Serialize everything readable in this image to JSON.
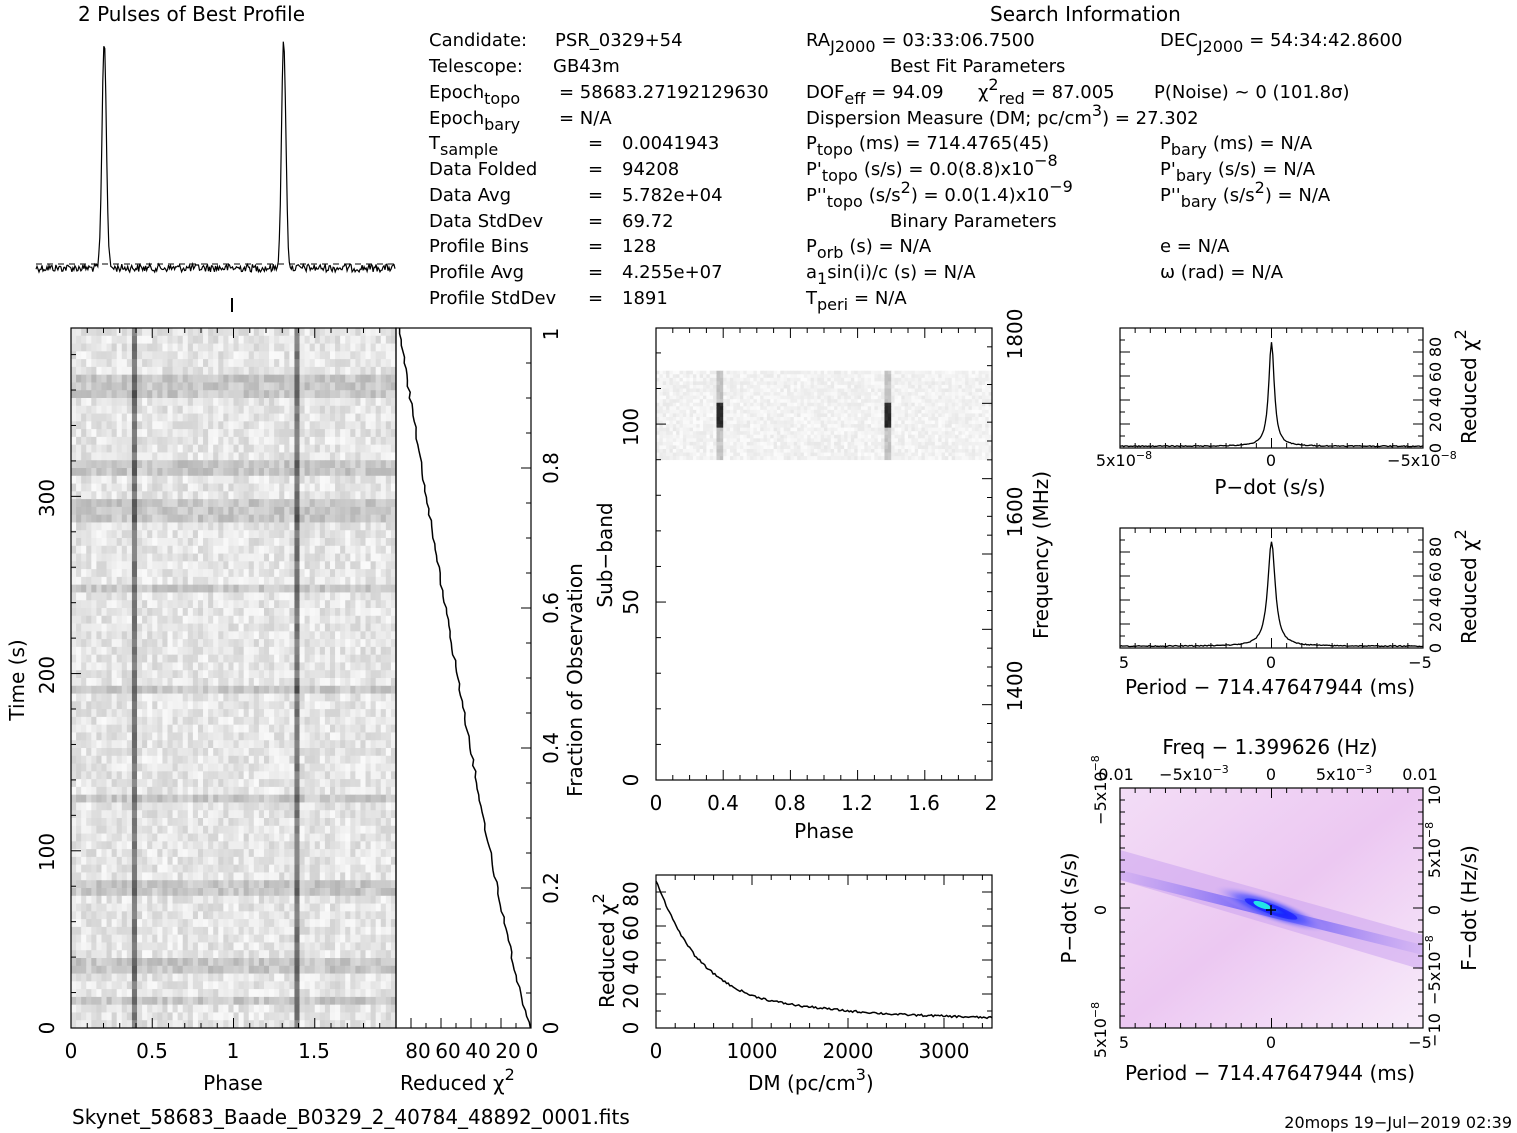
{
  "titles": {
    "profile": "2 Pulses of Best Profile",
    "search": "Search Information",
    "bestfit": "Best Fit Parameters",
    "binary": "Binary Parameters"
  },
  "params": {
    "candidate_label": "Candidate:",
    "candidate_value": "PSR_0329+54",
    "telescope_label": "Telescope:",
    "telescope_value": "GB43m",
    "epoch_topo": "Epoch",
    "epoch_topo_sub": "topo",
    "epoch_topo_value": "= 58683.27192129630",
    "epoch_bary": "Epoch",
    "epoch_bary_sub": "bary",
    "epoch_bary_value": "= N/A",
    "tsample": "T",
    "tsample_sub": "sample",
    "tsample_value": "0.0041943",
    "folded_label": "Data Folded",
    "folded_value": "94208",
    "avg_label": "Data Avg",
    "avg_value": "5.782e+04",
    "std_label": "Data StdDev",
    "std_value": "69.72",
    "bins_label": "Profile Bins",
    "bins_value": "128",
    "pavg_label": "Profile Avg",
    "pavg_value": "4.255e+07",
    "pstd_label": "Profile StdDev",
    "pstd_value": "1891",
    "eq": "="
  },
  "search": {
    "ra": "RA",
    "ra_sub": "J2000",
    "ra_value": "= 03:33:06.7500",
    "dec": "DEC",
    "dec_sub": "J2000",
    "dec_value": "= 54:34:42.8600",
    "dof": "DOF",
    "dof_sub": "eff",
    "dof_value": "= 94.09",
    "chi": "χ",
    "chi_sup": "2",
    "chi_sub": "red",
    "chi_value": "= 87.005",
    "pnoise": "P(Noise) ~ 0    (101.8σ)",
    "dm_line": "Dispersion Measure (DM; pc/cm",
    "dm_sup": "3",
    "dm_value": ") = 27.302",
    "ptopo": "P",
    "ptopo_sub": "topo",
    "ptopo_value": "(ms) =  714.4765(45)",
    "pdtopo": "P'",
    "pdtopo_sub": "topo",
    "pdtopo_value": "(s/s) = 0.0(8.8)x10",
    "pdtopo_exp": "−8",
    "pddtopo": "P''",
    "pddtopo_sub": "topo",
    "pddtopo_value": "(s/s",
    "pddtopo_sup": "2",
    "pddtopo_value2": ") = 0.0(1.4)x10",
    "pddtopo_exp": "−9",
    "pbary": "P",
    "pbary_sub": "bary",
    "pbary_value": "(ms) = N/A",
    "pdbary": "P'",
    "pdbary_sub": "bary",
    "pdbary_value": "(s/s) = N/A",
    "pddbary": "P''",
    "pddbary_sub": "bary",
    "pddbary_value": "(s/s",
    "pddbary_sup": "2",
    "pddbary_value2": ") = N/A",
    "porb": "P",
    "porb_sub": "orb",
    "porb_value": "(s) = N/A",
    "asini": "a",
    "asini_sub": "1",
    "asini_value": "sin(i)/c (s) = N/A",
    "tperi": "T",
    "tperi_sub": "peri",
    "tperi_value": "= N/A",
    "ecc": "e = N/A",
    "omega": "ω (rad) = N/A"
  },
  "footer": {
    "filename": "Skynet_58683_Baade_B0329_2_40784_48892_0001.fits",
    "stamp": "20mops  19−Jul−2019 02:39"
  },
  "chart_data": [
    {
      "type": "line",
      "id": "profile",
      "title": "2 Pulses of Best Profile",
      "x": "phase 0-2",
      "peaks_at_phase": [
        0.38,
        1.38
      ]
    },
    {
      "type": "heatmap",
      "id": "time-phase",
      "xlabel": "Phase",
      "ylabel": "Time (s)",
      "xlim": [
        0,
        2
      ],
      "ylim": [
        0,
        395
      ],
      "xticks": [
        "0",
        "0.5",
        "1",
        "1.5"
      ],
      "yticks": [
        "0",
        "100",
        "200",
        "300"
      ],
      "pulse_phase": [
        0.38,
        1.38
      ]
    },
    {
      "type": "line",
      "id": "time-chi",
      "xlabel": "Reduced χ",
      "xlabel_sup": "2",
      "ylabel": "Fraction of Observation",
      "xticks": [
        "80",
        "60",
        "40",
        "20",
        "0"
      ],
      "yticks": [
        "0",
        "0.2",
        "0.4",
        "0.6",
        "0.8",
        "1"
      ]
    },
    {
      "type": "heatmap",
      "id": "subband-phase",
      "xlabel": "Phase",
      "ylabel": "Sub−band",
      "ylabel_right": "Frequency (MHz)",
      "xlim": [
        0,
        2
      ],
      "ylim": [
        0,
        127
      ],
      "xticks": [
        "0",
        "0.4",
        "0.8",
        "1.2",
        "1.6",
        "2"
      ],
      "yticks": [
        "0",
        "50",
        "100"
      ],
      "freq_ticks": [
        "1400",
        "1600",
        "1800"
      ],
      "active_subbands": [
        90,
        115
      ]
    },
    {
      "type": "line",
      "id": "dm-chi",
      "xlabel": "DM (pc/cm",
      "xlabel_sup": "3",
      "xlabel_end": ")",
      "ylabel": "Reduced χ",
      "ylabel_sup": "2",
      "xlim": [
        0,
        3500
      ],
      "ylim": [
        0,
        90
      ],
      "xticks": [
        "0",
        "1000",
        "2000",
        "3000"
      ],
      "yticks": [
        "0",
        "20",
        "40",
        "60",
        "80"
      ],
      "x": [
        0,
        100,
        200,
        300,
        400,
        500,
        600,
        800,
        1000,
        1200,
        1500,
        2000,
        2500,
        3000,
        3500
      ],
      "y": [
        87,
        73,
        61,
        51,
        43,
        37,
        32,
        24,
        19,
        16,
        13,
        10,
        8,
        7,
        6
      ]
    },
    {
      "type": "line",
      "id": "pdot-chi",
      "xlabel": "P−dot (s/s)",
      "ylabel": "Reduced χ",
      "ylabel_sup": "2",
      "xticks": [
        "5x10",
        "0",
        "−5x10"
      ],
      "xtick_exp": "−8",
      "yticks": [
        "0",
        "20",
        "40",
        "60",
        "80"
      ],
      "peak": 87
    },
    {
      "type": "line",
      "id": "period-chi",
      "xlabel": "Period − 714.47647944 (ms)",
      "ylabel": "Reduced χ",
      "ylabel_sup": "2",
      "xticks": [
        "5",
        "0",
        "−5"
      ],
      "yticks": [
        "0",
        "20",
        "40",
        "60",
        "80"
      ],
      "peak": 87
    },
    {
      "type": "heatmap",
      "id": "p-pdot",
      "title": "Freq − 1.399626 (Hz)",
      "xlabel": "Period − 714.47647944 (ms)",
      "ylabel": "P−dot (s/s)",
      "ylabel_right": "F−dot (Hz/s)",
      "xticks": [
        "5",
        "0",
        "−5"
      ],
      "top_ticks": [
        "0.01",
        "−5x10",
        "0",
        "5x10",
        "0.01"
      ],
      "top_tick_exp": "−3",
      "left_ticks": [
        "5x10",
        "0",
        "−5x10"
      ],
      "left_tick_exp": "−8",
      "right_ticks": [
        "−10",
        "−5x10",
        "0",
        "5x10",
        "10"
      ],
      "right_tick_exp": "−8",
      "colors": {
        "low": "#ffffff",
        "mid": "#e8b6f0",
        "high": "#1a1aff",
        "peak": "#19e6e6"
      }
    }
  ]
}
